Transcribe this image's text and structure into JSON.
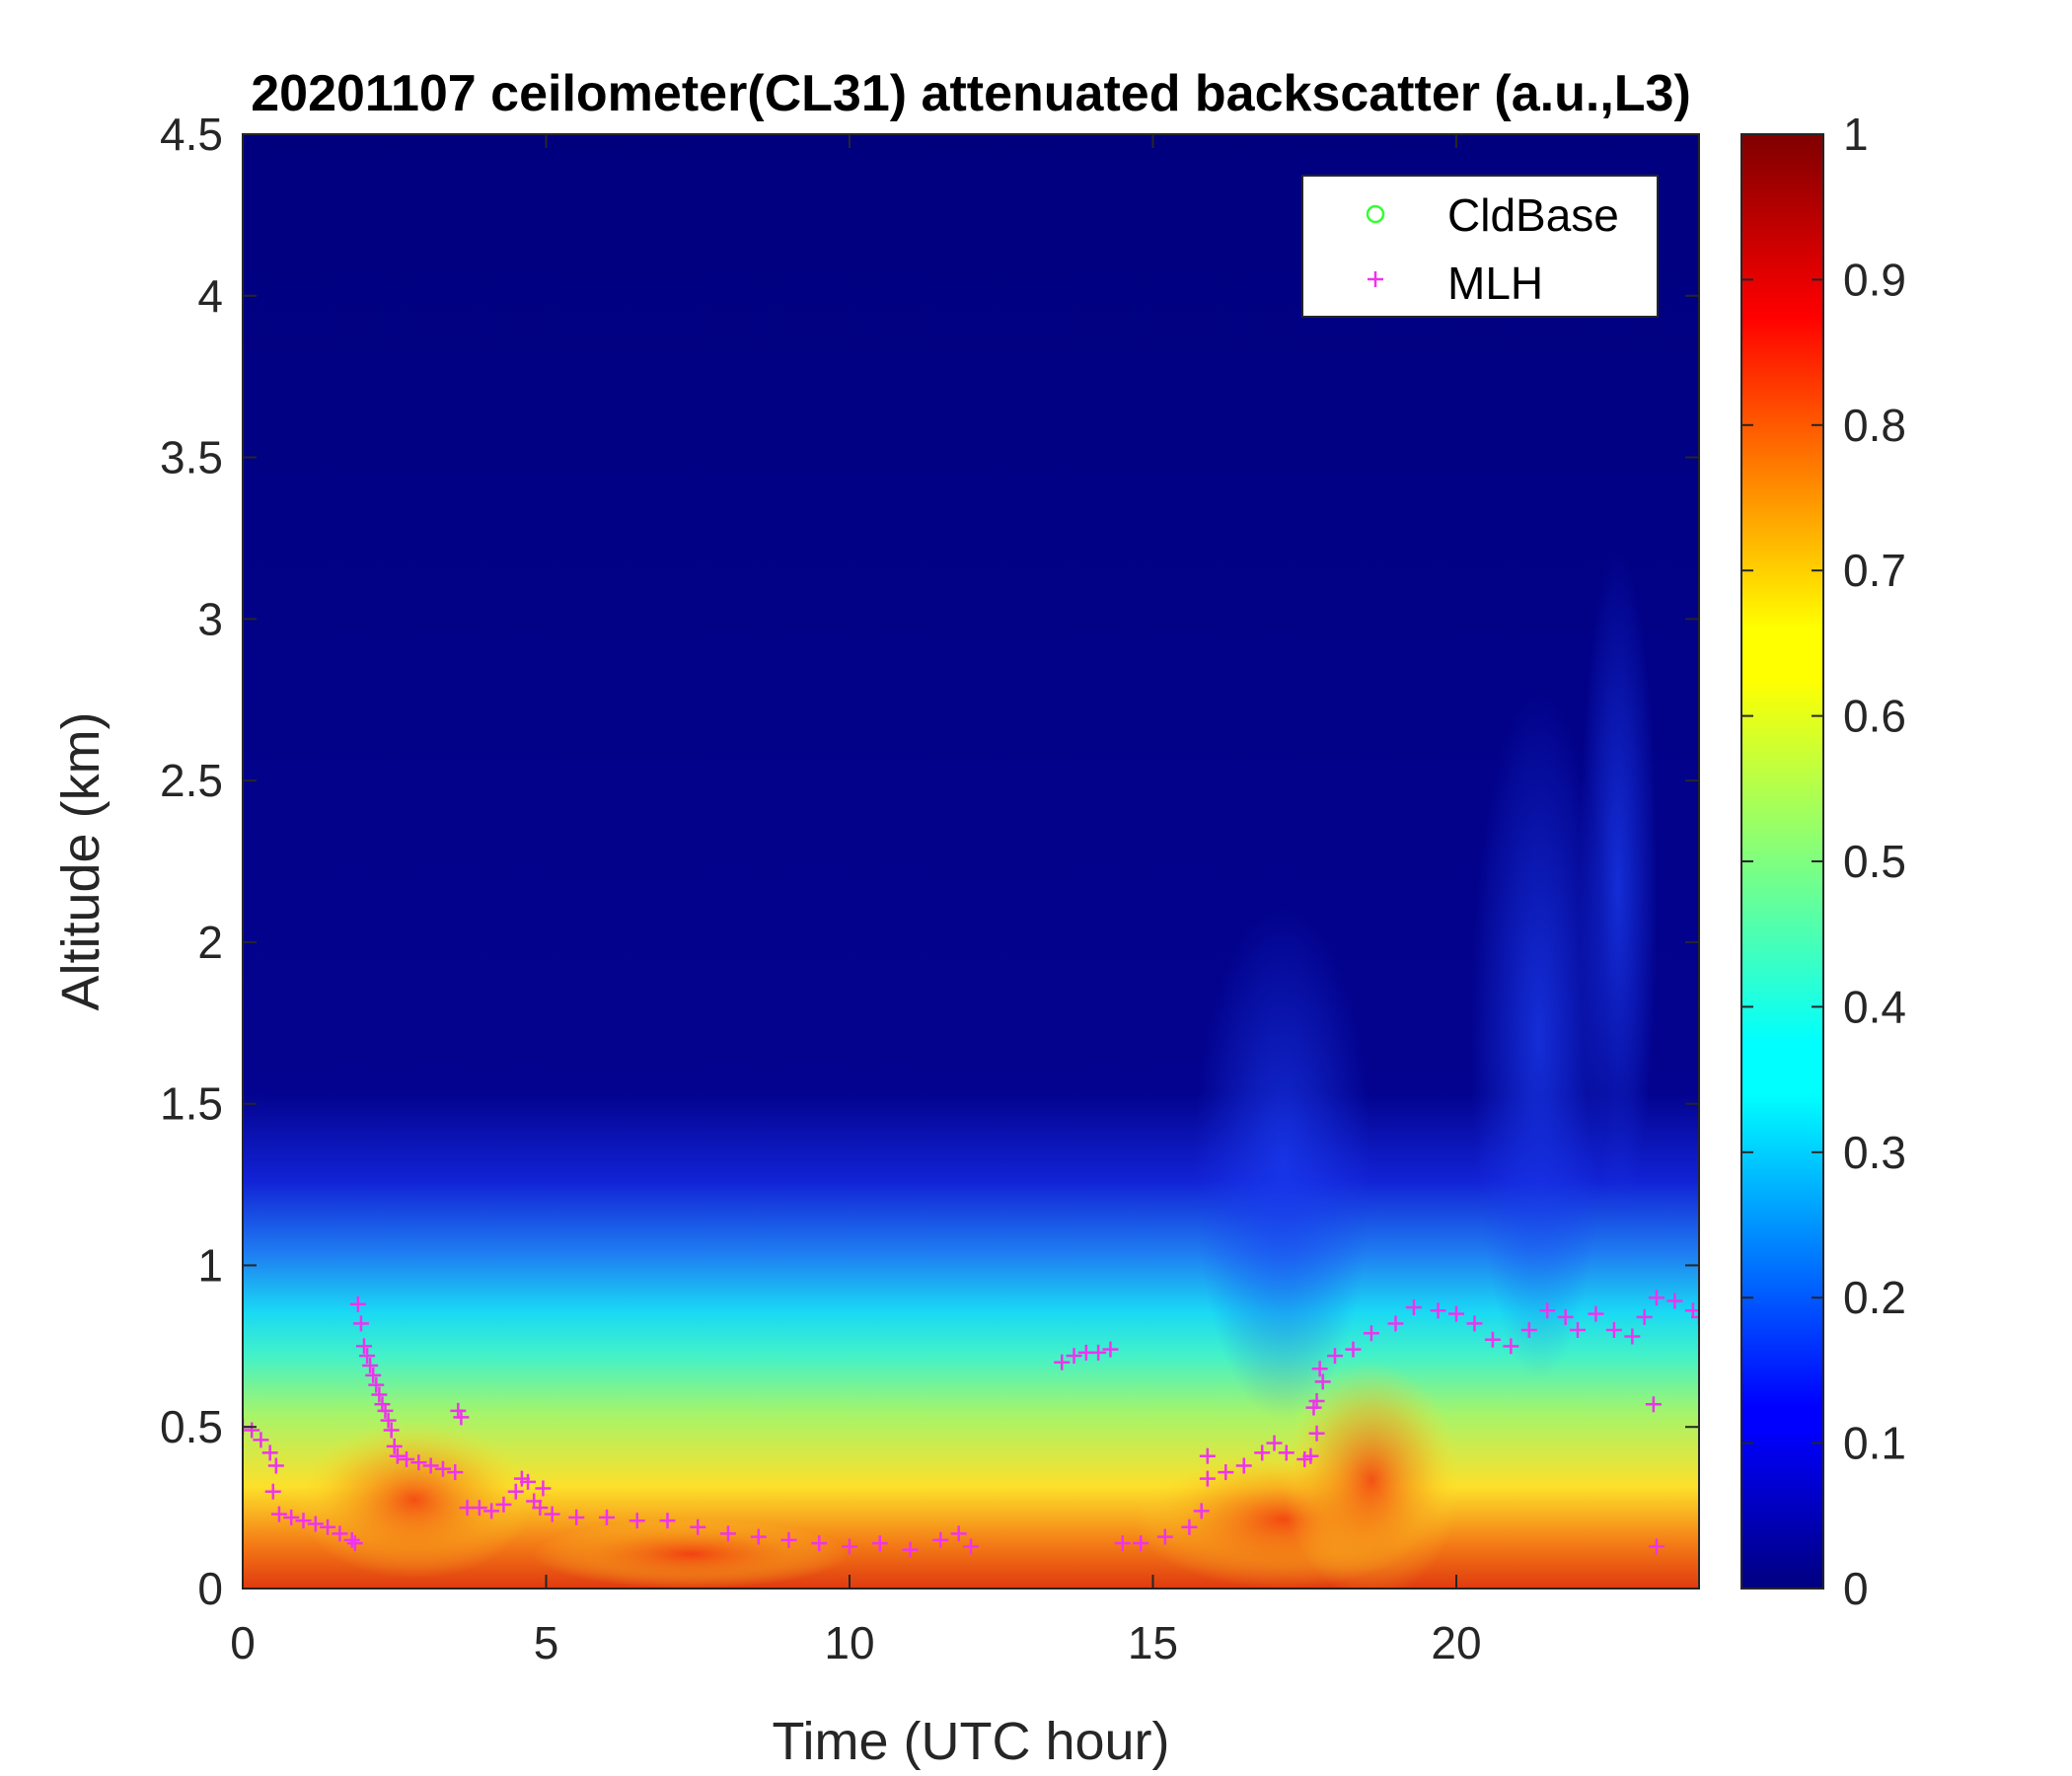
{
  "chart_data": {
    "type": "heatmap",
    "title": "20201107 ceilometer(CL31) attenuated backscatter (a.u.,L3)",
    "xlabel": "Time (UTC hour)",
    "ylabel": "Altitude (km)",
    "xlim": [
      0,
      24
    ],
    "ylim": [
      0,
      4.5
    ],
    "clim": [
      0,
      1
    ],
    "colormap": "jet",
    "x_ticks": [
      "0",
      "5",
      "10",
      "15",
      "20"
    ],
    "y_ticks": [
      "0",
      "0.5",
      "1",
      "1.5",
      "2",
      "2.5",
      "3",
      "3.5",
      "4",
      "4.5"
    ],
    "colorbar_ticks": [
      "0",
      "0.1",
      "0.2",
      "0.3",
      "0.4",
      "0.5",
      "0.6",
      "0.7",
      "0.8",
      "0.9",
      "1"
    ],
    "legend": {
      "placement": "top-right",
      "entries": [
        {
          "label": "CldBase",
          "marker": "circle",
          "color": "#33ff33"
        },
        {
          "label": "MLH",
          "marker": "plus",
          "color": "#ee33ee"
        }
      ]
    },
    "series": [
      {
        "name": "CldBase",
        "points": []
      },
      {
        "name": "MLH",
        "points": [
          [
            0.0,
            0.5
          ],
          [
            0.15,
            0.49
          ],
          [
            0.3,
            0.46
          ],
          [
            0.45,
            0.42
          ],
          [
            0.55,
            0.38
          ],
          [
            0.5,
            0.3
          ],
          [
            0.6,
            0.23
          ],
          [
            0.8,
            0.22
          ],
          [
            1.0,
            0.21
          ],
          [
            1.2,
            0.2
          ],
          [
            1.4,
            0.19
          ],
          [
            1.6,
            0.17
          ],
          [
            1.8,
            0.15
          ],
          [
            1.85,
            0.14
          ],
          [
            1.9,
            0.88
          ],
          [
            1.95,
            0.82
          ],
          [
            2.0,
            0.75
          ],
          [
            2.05,
            0.72
          ],
          [
            2.1,
            0.69
          ],
          [
            2.15,
            0.66
          ],
          [
            2.2,
            0.63
          ],
          [
            2.25,
            0.6
          ],
          [
            2.3,
            0.57
          ],
          [
            2.35,
            0.55
          ],
          [
            2.4,
            0.52
          ],
          [
            2.45,
            0.49
          ],
          [
            2.5,
            0.44
          ],
          [
            2.55,
            0.41
          ],
          [
            2.7,
            0.4
          ],
          [
            2.9,
            0.39
          ],
          [
            3.1,
            0.38
          ],
          [
            3.3,
            0.37
          ],
          [
            3.5,
            0.36
          ],
          [
            3.55,
            0.55
          ],
          [
            3.6,
            0.53
          ],
          [
            3.7,
            0.25
          ],
          [
            3.9,
            0.25
          ],
          [
            4.1,
            0.24
          ],
          [
            4.3,
            0.26
          ],
          [
            4.5,
            0.3
          ],
          [
            4.6,
            0.34
          ],
          [
            4.7,
            0.33
          ],
          [
            4.8,
            0.27
          ],
          [
            4.9,
            0.25
          ],
          [
            4.95,
            0.31
          ],
          [
            5.1,
            0.23
          ],
          [
            5.5,
            0.22
          ],
          [
            6.0,
            0.22
          ],
          [
            6.5,
            0.21
          ],
          [
            7.0,
            0.21
          ],
          [
            7.5,
            0.19
          ],
          [
            8.0,
            0.17
          ],
          [
            8.5,
            0.16
          ],
          [
            9.0,
            0.15
          ],
          [
            9.5,
            0.14
          ],
          [
            10.0,
            0.13
          ],
          [
            10.5,
            0.14
          ],
          [
            11.0,
            0.12
          ],
          [
            11.5,
            0.15
          ],
          [
            11.8,
            0.17
          ],
          [
            12.0,
            0.13
          ],
          [
            13.5,
            0.7
          ],
          [
            13.7,
            0.72
          ],
          [
            13.9,
            0.73
          ],
          [
            14.1,
            0.73
          ],
          [
            14.3,
            0.74
          ],
          [
            14.5,
            0.14
          ],
          [
            14.8,
            0.14
          ],
          [
            15.2,
            0.16
          ],
          [
            15.6,
            0.19
          ],
          [
            15.8,
            0.24
          ],
          [
            15.9,
            0.41
          ],
          [
            15.9,
            0.34
          ],
          [
            16.2,
            0.36
          ],
          [
            16.5,
            0.38
          ],
          [
            16.8,
            0.42
          ],
          [
            17.0,
            0.45
          ],
          [
            17.2,
            0.42
          ],
          [
            17.5,
            0.4
          ],
          [
            17.6,
            0.41
          ],
          [
            17.65,
            0.56
          ],
          [
            17.7,
            0.58
          ],
          [
            17.75,
            0.68
          ],
          [
            17.8,
            0.64
          ],
          [
            17.7,
            0.48
          ],
          [
            18.0,
            0.72
          ],
          [
            18.3,
            0.74
          ],
          [
            18.6,
            0.79
          ],
          [
            19.0,
            0.82
          ],
          [
            19.3,
            0.87
          ],
          [
            19.7,
            0.86
          ],
          [
            20.0,
            0.85
          ],
          [
            20.3,
            0.82
          ],
          [
            20.6,
            0.77
          ],
          [
            20.9,
            0.75
          ],
          [
            21.2,
            0.8
          ],
          [
            21.5,
            0.86
          ],
          [
            21.8,
            0.84
          ],
          [
            22.0,
            0.8
          ],
          [
            22.3,
            0.85
          ],
          [
            22.6,
            0.8
          ],
          [
            22.9,
            0.78
          ],
          [
            23.1,
            0.84
          ],
          [
            23.3,
            0.9
          ],
          [
            23.6,
            0.89
          ],
          [
            23.9,
            0.86
          ],
          [
            24.0,
            0.84
          ],
          [
            23.25,
            0.57
          ],
          [
            23.3,
            0.13
          ]
        ]
      }
    ]
  }
}
